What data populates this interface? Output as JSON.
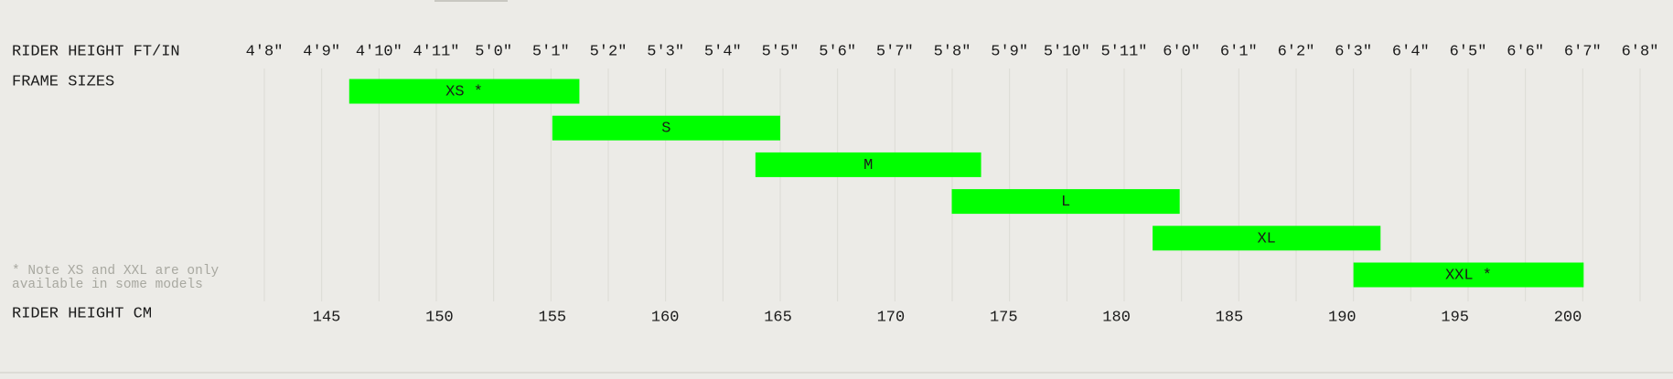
{
  "chart_data": {
    "type": "range-bar",
    "x2_axis_label": "RIDER HEIGHT FT/IN",
    "category_axis_label": "FRAME SIZES",
    "x_axis_label": "RIDER HEIGHT CM",
    "note": "* Note XS and XXL are only available in some models",
    "categories": [
      "XS *",
      "S",
      "M",
      "L",
      "XL",
      "XXL *"
    ],
    "starts": [
      146,
      155,
      164,
      172.7,
      181.6,
      190.5
    ],
    "ends": [
      156.2,
      165.1,
      174,
      182.8,
      191.7,
      200.7
    ],
    "color": "#00ff00",
    "xlim": [
      142.24,
      203.2
    ],
    "xticks": [
      145,
      150,
      155,
      160,
      165,
      170,
      175,
      180,
      185,
      190,
      195,
      200
    ],
    "x2lim": [
      56,
      80
    ],
    "x2ticks": [
      {
        "value": 56,
        "label": "4'8\""
      },
      {
        "value": 57,
        "label": "4'9\""
      },
      {
        "value": 58,
        "label": "4'10\""
      },
      {
        "value": 59,
        "label": "4'11\""
      },
      {
        "value": 60,
        "label": "5'0\""
      },
      {
        "value": 61,
        "label": "5'1\""
      },
      {
        "value": 62,
        "label": "5'2\""
      },
      {
        "value": 63,
        "label": "5'3\""
      },
      {
        "value": 64,
        "label": "5'4\""
      },
      {
        "value": 65,
        "label": "5'5\""
      },
      {
        "value": 66,
        "label": "5'6\""
      },
      {
        "value": 67,
        "label": "5'7\""
      },
      {
        "value": 68,
        "label": "5'8\""
      },
      {
        "value": 69,
        "label": "5'9\""
      },
      {
        "value": 70,
        "label": "5'10\""
      },
      {
        "value": 71,
        "label": "5'11\""
      },
      {
        "value": 72,
        "label": "6'0\""
      },
      {
        "value": 73,
        "label": "6'1\""
      },
      {
        "value": 74,
        "label": "6'2\""
      },
      {
        "value": 75,
        "label": "6'3\""
      },
      {
        "value": 76,
        "label": "6'4\""
      },
      {
        "value": 77,
        "label": "6'5\""
      },
      {
        "value": 78,
        "label": "6'6\""
      },
      {
        "value": 79,
        "label": "6'7\""
      },
      {
        "value": 80,
        "label": "6'8\""
      }
    ],
    "grid": true
  }
}
